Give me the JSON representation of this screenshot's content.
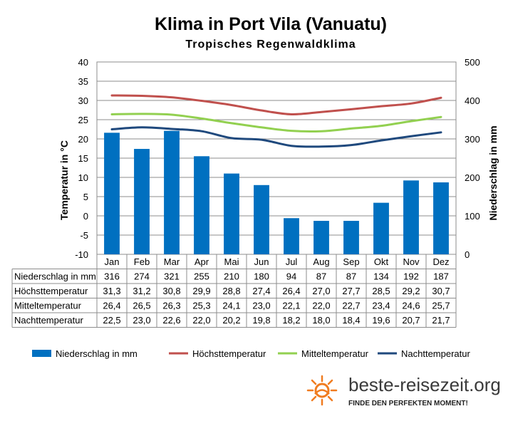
{
  "title": "Klima in Port Vila (Vanuatu)",
  "subtitle": "Tropisches Regenwaldklima",
  "brand": {
    "name": "beste-reisezeit.org",
    "tagline": "FINDE DEN PERFEKTEN MOMENT!",
    "logo_icon": "sun-icon"
  },
  "chart_data": {
    "type": "bar",
    "title": "Klima in Port Vila (Vanuatu)",
    "categories": [
      "Jan",
      "Feb",
      "Mar",
      "Apr",
      "Mai",
      "Jun",
      "Jul",
      "Aug",
      "Sep",
      "Okt",
      "Nov",
      "Dez"
    ],
    "ylabel_left": "Temperatur in °C",
    "ylabel_right": "Niederschlag in mm",
    "ylim_left": [
      -10,
      40
    ],
    "ylim_right": [
      0,
      500
    ],
    "yticks_left": [
      "40",
      "35",
      "30",
      "25",
      "20",
      "15",
      "10",
      "5",
      "0",
      "-5",
      "-10"
    ],
    "yticks_right": [
      "500",
      "400",
      "300",
      "200",
      "100",
      "0"
    ],
    "grid": true,
    "legend_position": "bottom",
    "series": [
      {
        "name": "Niederschlag in mm",
        "kind": "bar",
        "axis": "right",
        "color": "#0070C0",
        "values": [
          316,
          274,
          321,
          255,
          210,
          180,
          94,
          87,
          87,
          134,
          192,
          187
        ]
      },
      {
        "name": "Höchsttemperatur",
        "kind": "line",
        "axis": "left",
        "color": "#C0504D",
        "values": [
          31.3,
          31.2,
          30.8,
          29.9,
          28.8,
          27.4,
          26.4,
          27.0,
          27.7,
          28.5,
          29.2,
          30.7
        ]
      },
      {
        "name": "Mitteltemperatur",
        "kind": "line",
        "axis": "left",
        "color": "#92D050",
        "values": [
          26.4,
          26.5,
          26.3,
          25.3,
          24.1,
          23.0,
          22.1,
          22.0,
          22.7,
          23.4,
          24.6,
          25.7
        ]
      },
      {
        "name": "Nachttemperatur",
        "kind": "line",
        "axis": "left",
        "color": "#1F497D",
        "values": [
          22.5,
          23.0,
          22.6,
          22.0,
          20.2,
          19.8,
          18.2,
          18.0,
          18.4,
          19.6,
          20.7,
          21.7
        ]
      }
    ],
    "table": {
      "rows": [
        {
          "label": "Niederschlag in mm",
          "values": [
            "316",
            "274",
            "321",
            "255",
            "210",
            "180",
            "94",
            "87",
            "87",
            "134",
            "192",
            "187"
          ]
        },
        {
          "label": "Höchsttemperatur",
          "values": [
            "31,3",
            "31,2",
            "30,8",
            "29,9",
            "28,8",
            "27,4",
            "26,4",
            "27,0",
            "27,7",
            "28,5",
            "29,2",
            "30,7"
          ]
        },
        {
          "label": "Mitteltemperatur",
          "values": [
            "26,4",
            "26,5",
            "26,3",
            "25,3",
            "24,1",
            "23,0",
            "22,1",
            "22,0",
            "22,7",
            "23,4",
            "24,6",
            "25,7"
          ]
        },
        {
          "label": "Nachttemperatur",
          "values": [
            "22,5",
            "23,0",
            "22,6",
            "22,0",
            "20,2",
            "19,8",
            "18,2",
            "18,0",
            "18,4",
            "19,6",
            "20,7",
            "21,7"
          ]
        }
      ]
    }
  }
}
